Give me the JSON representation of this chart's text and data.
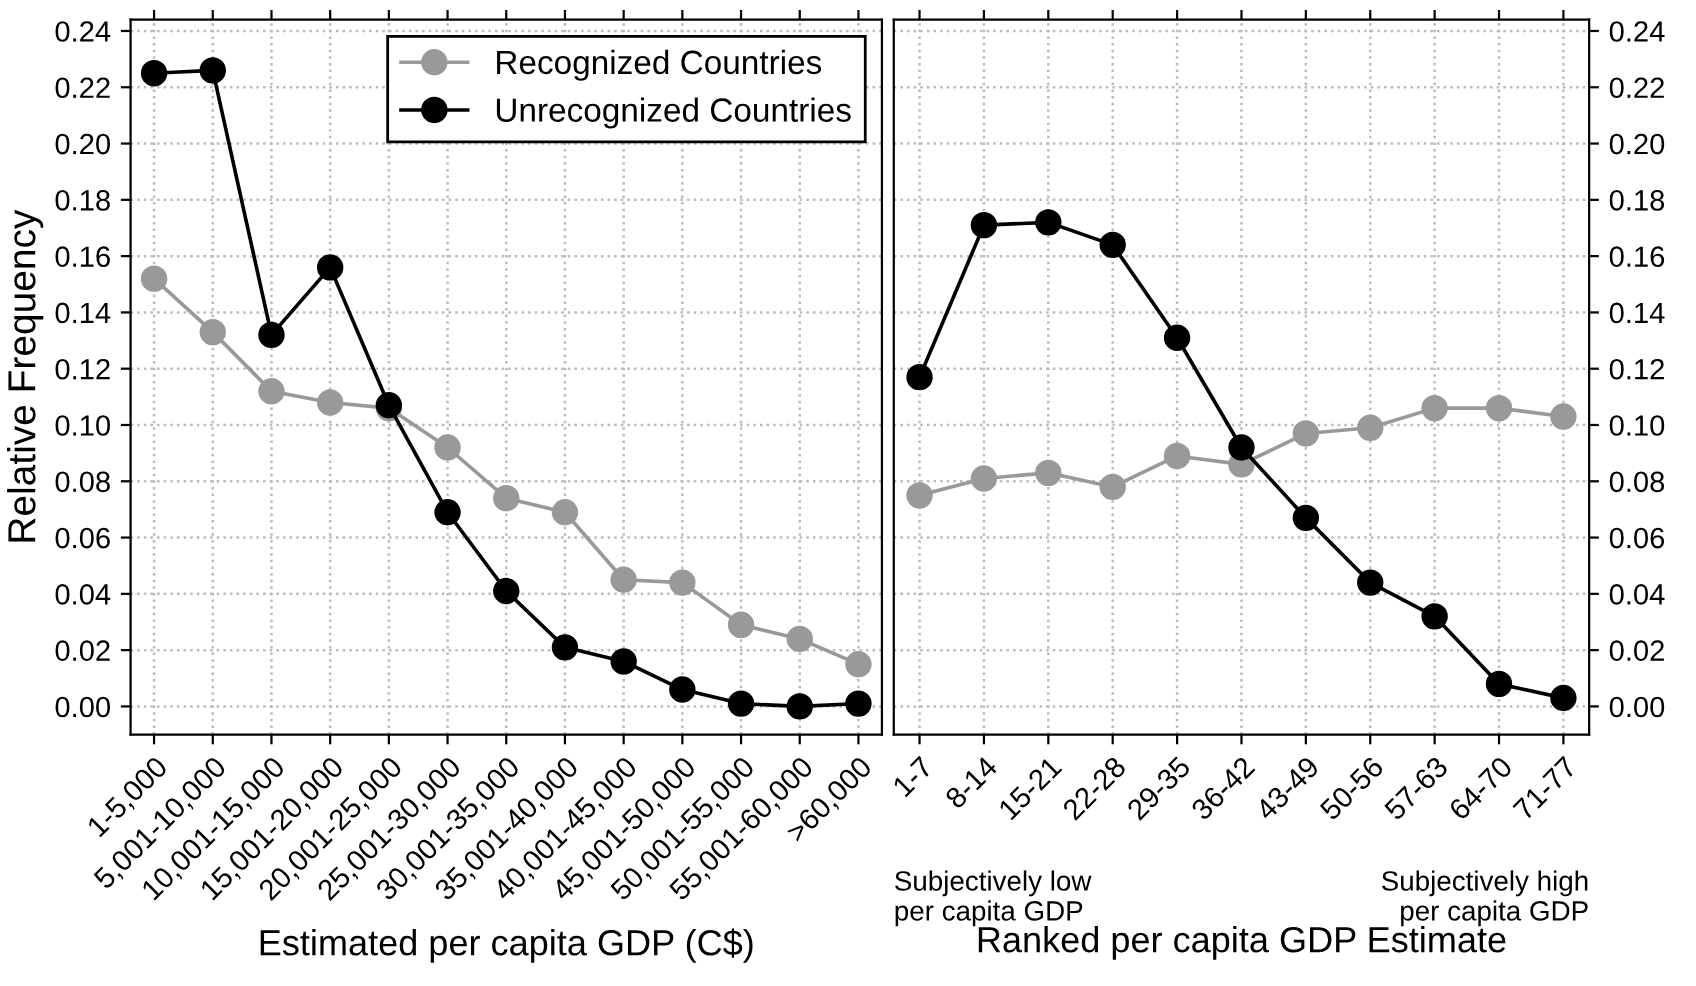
{
  "chart_data": [
    {
      "type": "line",
      "xlabel": "Estimated per capita GDP (C$)",
      "ylabel": "Relative Frequency",
      "categories": [
        "1-5,000",
        "5,001-10,000",
        "10,001-15,000",
        "15,001-20,000",
        "20,001-25,000",
        "25,001-30,000",
        "30,001-35,000",
        "35,001-40,000",
        "40,001-45,000",
        "45,001-50,000",
        "50,001-55,000",
        "55,001-60,000",
        ">60,000"
      ],
      "series": [
        {
          "name": "Recognized Countries",
          "color": "#999999",
          "values": [
            0.152,
            0.133,
            0.112,
            0.108,
            0.106,
            0.092,
            0.074,
            0.069,
            0.045,
            0.044,
            0.029,
            0.024,
            0.015
          ]
        },
        {
          "name": "Unrecognized Countries",
          "color": "#000000",
          "values": [
            0.225,
            0.226,
            0.132,
            0.156,
            0.107,
            0.069,
            0.041,
            0.021,
            0.016,
            0.006,
            0.001,
            0.0,
            0.001
          ]
        }
      ],
      "ylim": [
        -0.01,
        0.244
      ],
      "yticks": [
        {
          "value": 0,
          "label": "0.00"
        },
        {
          "value": 0.02,
          "label": "0.02"
        },
        {
          "value": 0.04,
          "label": "0.04"
        },
        {
          "value": 0.06,
          "label": "0.06"
        },
        {
          "value": 0.08,
          "label": "0.08"
        },
        {
          "value": 0.1,
          "label": "0.10"
        },
        {
          "value": 0.12,
          "label": "0.12"
        },
        {
          "value": 0.14,
          "label": "0.14"
        },
        {
          "value": 0.16,
          "label": "0.16"
        },
        {
          "value": 0.18,
          "label": "0.18"
        },
        {
          "value": 0.2,
          "label": "0.20"
        },
        {
          "value": 0.22,
          "label": "0.22"
        },
        {
          "value": 0.24,
          "label": "0.24"
        }
      ],
      "grid": true,
      "legend": "top right",
      "marker": "circle",
      "line_style": "solid"
    },
    {
      "type": "line",
      "xlabel": "Ranked per capita GDP Estimate",
      "categories": [
        "1-7",
        "8-14",
        "15-21",
        "22-28",
        "29-35",
        "36-42",
        "43-49",
        "50-56",
        "57-63",
        "64-70",
        "71-77"
      ],
      "series": [
        {
          "color": "#999999",
          "values": [
            0.075,
            0.081,
            0.083,
            0.078,
            0.089,
            0.086,
            0.097,
            0.099,
            0.106,
            0.106,
            0.103
          ]
        },
        {
          "color": "#000000",
          "values": [
            0.117,
            0.171,
            0.172,
            0.164,
            0.131,
            0.092,
            0.067,
            0.044,
            0.032,
            0.008,
            0.003
          ]
        }
      ],
      "ylim": [
        -0.01,
        0.244
      ],
      "yticks": [
        {
          "value": 0,
          "label": "0.00"
        },
        {
          "value": 0.02,
          "label": "0.02"
        },
        {
          "value": 0.04,
          "label": "0.04"
        },
        {
          "value": 0.06,
          "label": "0.06"
        },
        {
          "value": 0.08,
          "label": "0.08"
        },
        {
          "value": 0.1,
          "label": "0.10"
        },
        {
          "value": 0.12,
          "label": "0.12"
        },
        {
          "value": 0.14,
          "label": "0.14"
        },
        {
          "value": 0.16,
          "label": "0.16"
        },
        {
          "value": 0.18,
          "label": "0.18"
        },
        {
          "value": 0.2,
          "label": "0.20"
        },
        {
          "value": 0.22,
          "label": "0.22"
        },
        {
          "value": 0.24,
          "label": "0.24"
        }
      ],
      "grid": true,
      "marker": "circle",
      "line_style": "solid",
      "annotations": [
        "Subjectively low\nper capita GDP",
        "Subjectively high\nper capita GDP"
      ]
    }
  ]
}
